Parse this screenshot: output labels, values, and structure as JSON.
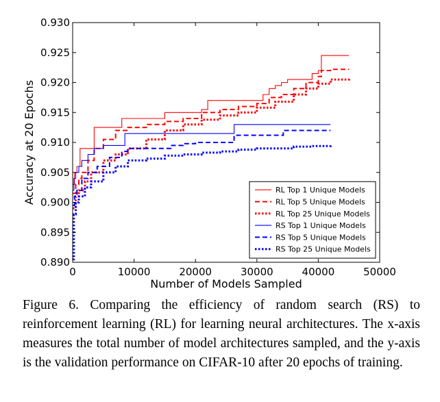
{
  "chart_data": {
    "type": "line",
    "title": "",
    "xlabel": "Number of Models Sampled",
    "ylabel": "Accuracy at 20 Epochs",
    "xlim": [
      0,
      50000
    ],
    "ylim": [
      0.89,
      0.93
    ],
    "xticks": [
      0,
      10000,
      20000,
      30000,
      40000,
      50000
    ],
    "xtick_labels": [
      "0",
      "10000",
      "20000",
      "30000",
      "40000",
      "50000"
    ],
    "yticks": [
      0.89,
      0.895,
      0.9,
      0.905,
      0.91,
      0.915,
      0.92,
      0.925,
      0.93
    ],
    "ytick_labels": [
      "0.890",
      "0.895",
      "0.900",
      "0.905",
      "0.910",
      "0.915",
      "0.920",
      "0.925",
      "0.930"
    ],
    "grid": false,
    "legend_position": "lower right",
    "series": [
      {
        "name": "RL Top 1 Unique Models",
        "color": "#ff0000",
        "style": "solid",
        "x": [
          0,
          300,
          700,
          1200,
          1800,
          3500,
          8000,
          15000,
          21000,
          22000,
          30000,
          31000,
          32000,
          33000,
          34000,
          35000,
          36000,
          38000,
          39000,
          40000,
          40500,
          45000
        ],
        "y": [
          0.903,
          0.905,
          0.906,
          0.909,
          0.909,
          0.9125,
          0.914,
          0.915,
          0.9155,
          0.917,
          0.917,
          0.918,
          0.919,
          0.9195,
          0.92,
          0.9205,
          0.9205,
          0.9205,
          0.9215,
          0.922,
          0.9245,
          0.9245
        ]
      },
      {
        "name": "RL Top 5 Unique Models",
        "color": "#ff0000",
        "style": "dashed",
        "x": [
          0,
          500,
          1000,
          1500,
          2500,
          3500,
          5000,
          7000,
          9000,
          12000,
          15000,
          18000,
          21000,
          24000,
          27000,
          30000,
          32000,
          34000,
          36000,
          38000,
          40000,
          40500,
          42000,
          45000
        ],
        "y": [
          0.9015,
          0.903,
          0.904,
          0.905,
          0.907,
          0.909,
          0.9105,
          0.912,
          0.9125,
          0.913,
          0.9135,
          0.914,
          0.915,
          0.9155,
          0.916,
          0.9165,
          0.9175,
          0.918,
          0.919,
          0.92,
          0.921,
          0.922,
          0.9222,
          0.9222
        ]
      },
      {
        "name": "RL Top 25 Unique Models",
        "color": "#ff0000",
        "style": "dotted",
        "x": [
          0,
          500,
          1000,
          2000,
          3000,
          5000,
          7000,
          9000,
          12000,
          15000,
          18000,
          21000,
          24000,
          27000,
          30000,
          33000,
          36000,
          38000,
          40000,
          42000,
          45000
        ],
        "y": [
          0.899,
          0.901,
          0.902,
          0.9035,
          0.905,
          0.907,
          0.908,
          0.909,
          0.9105,
          0.912,
          0.913,
          0.9138,
          0.9145,
          0.915,
          0.9158,
          0.9168,
          0.918,
          0.919,
          0.9198,
          0.9205,
          0.9208
        ]
      },
      {
        "name": "RS Top 1 Unique Models",
        "color": "#0000ff",
        "style": "solid",
        "x": [
          0,
          200,
          500,
          1000,
          1500,
          2500,
          3500,
          5000,
          8500,
          26000,
          26300,
          42000
        ],
        "y": [
          0.902,
          0.904,
          0.905,
          0.906,
          0.907,
          0.908,
          0.909,
          0.9095,
          0.9115,
          0.9115,
          0.913,
          0.913
        ]
      },
      {
        "name": "RS Top 5 Unique Models",
        "color": "#0000ff",
        "style": "dashed",
        "x": [
          0,
          300,
          700,
          1500,
          2500,
          4000,
          6000,
          8000,
          9000,
          14000,
          16000,
          18000,
          20000,
          26000,
          26300,
          34000,
          34300,
          42000
        ],
        "y": [
          0.8995,
          0.901,
          0.902,
          0.904,
          0.905,
          0.906,
          0.9075,
          0.9085,
          0.909,
          0.909,
          0.9095,
          0.9098,
          0.91,
          0.91,
          0.9112,
          0.9112,
          0.912,
          0.912
        ]
      },
      {
        "name": "RS Top 25 Unique Models",
        "color": "#0000ff",
        "style": "dotted",
        "x": [
          0,
          200,
          500,
          1000,
          2000,
          3000,
          5000,
          7000,
          9000,
          12000,
          15000,
          18000,
          21000,
          24000,
          27000,
          30000,
          33000,
          36000,
          39000,
          42000
        ],
        "y": [
          0.8905,
          0.898,
          0.9,
          0.901,
          0.9025,
          0.9035,
          0.905,
          0.906,
          0.907,
          0.9073,
          0.9078,
          0.908,
          0.9083,
          0.9085,
          0.9088,
          0.909,
          0.909,
          0.9093,
          0.9094,
          0.9095
        ]
      }
    ]
  },
  "caption": "Figure 6. Comparing the efficiency of random search (RS) to reinforcement learning (RL) for learning neural architectures. The x-axis measures the total number of model architectures sampled, and the y-axis is the validation performance on CIFAR-10 after 20 epochs of training."
}
